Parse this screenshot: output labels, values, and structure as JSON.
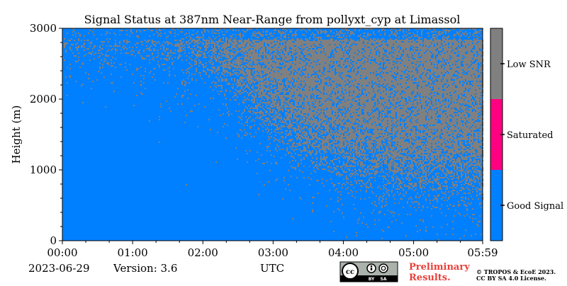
{
  "chart_data": {
    "type": "heatmap",
    "title": "Signal Status at 387nm Near-Range from pollyxt_cyp at Limassol",
    "xlabel": "UTC",
    "ylabel": "Height (m)",
    "x_ticks": [
      "00:00",
      "01:00",
      "02:00",
      "03:00",
      "04:00",
      "05:00",
      "05:59"
    ],
    "x_tick_hours": [
      0,
      1,
      2,
      3,
      4,
      5,
      5.983
    ],
    "xlim_hours": [
      0,
      5.983
    ],
    "y_ticks": [
      0,
      1000,
      2000,
      3000
    ],
    "ylim": [
      0,
      3000
    ],
    "categories": [
      "Good Signal",
      "Saturated",
      "Low SNR"
    ],
    "category_colors": [
      "#0080ff",
      "#ff0080",
      "#808080"
    ],
    "low_snr_onset_profile": {
      "hours": [
        0,
        1,
        2,
        2.5,
        3,
        3.5,
        4,
        4.5,
        5,
        5.983
      ],
      "height_m": [
        3000,
        3000,
        2700,
        2200,
        1700,
        1350,
        1150,
        1000,
        900,
        850
      ]
    }
  },
  "footer": {
    "date": "2023-06-29",
    "version": "Version: 3.6",
    "preliminary_line1": "Preliminary",
    "preliminary_line2": "Results.",
    "license_line1": "© TROPOS & EcoE 2023.",
    "license_line2": "CC BY SA 4.0 License."
  },
  "logo": {
    "by": "BY",
    "sa": "SA"
  }
}
